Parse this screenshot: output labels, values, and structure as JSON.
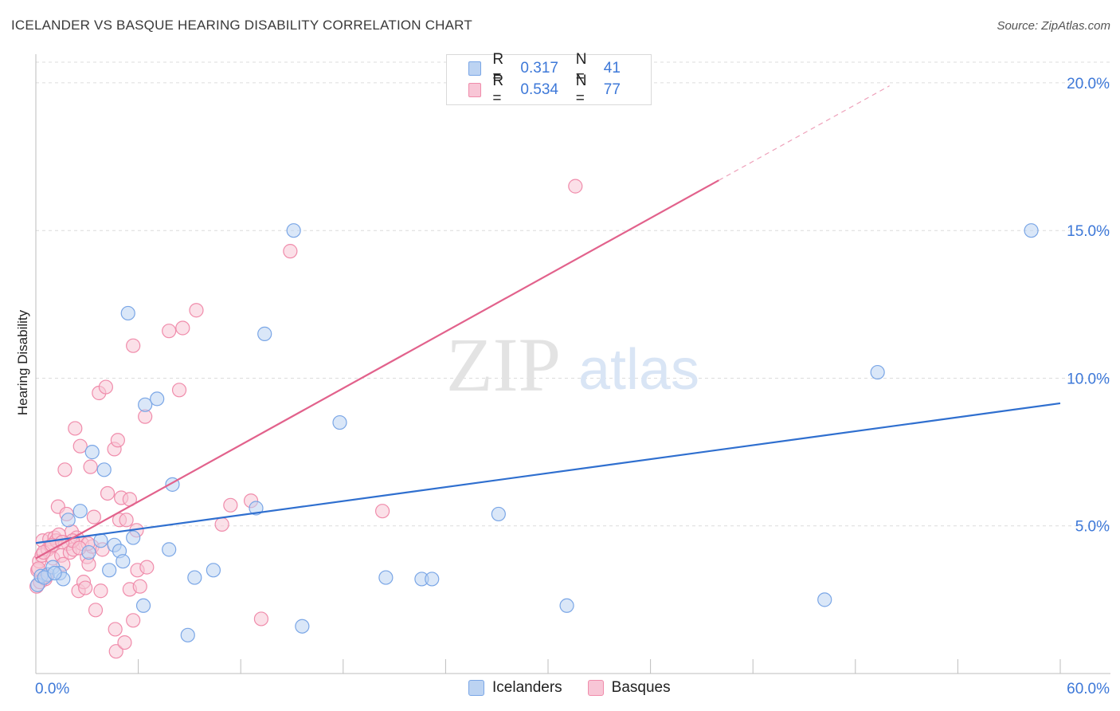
{
  "title": "ICELANDER VS BASQUE HEARING DISABILITY CORRELATION CHART",
  "source": "Source: ZipAtlas.com",
  "watermark": {
    "zip": "ZIP",
    "atlas": "atlas"
  },
  "legend": {
    "rows": [
      {
        "r_label": "R =",
        "r_value": "0.317",
        "n_label": "N =",
        "n_value": "41",
        "color": "#7aa6e6"
      },
      {
        "r_label": "R =",
        "r_value": "0.534",
        "n_label": "N =",
        "n_value": "77",
        "color": "#f08cab"
      }
    ]
  },
  "bottom_legend": {
    "icelanders": "Icelanders",
    "basques": "Basques"
  },
  "colors": {
    "icelander_fill": "#bcd3f2",
    "icelander_stroke": "#7aa6e6",
    "icelander_line": "#2f6fcf",
    "basque_fill": "#f8c6d6",
    "basque_stroke": "#f08cab",
    "basque_line": "#e2628c",
    "tick_label": "#3d78d8"
  },
  "chart_data": {
    "type": "scatter",
    "title": "ICELANDER VS BASQUE HEARING DISABILITY CORRELATION CHART",
    "xlabel": "",
    "ylabel": "Hearing Disability",
    "xlim": [
      0,
      60
    ],
    "ylim": [
      0,
      20.7
    ],
    "x_tick_labels": [
      {
        "value": 0,
        "label": "0.0%"
      },
      {
        "value": 60,
        "label": "60.0%"
      }
    ],
    "y_tick_labels": [
      {
        "value": 5,
        "label": "5.0%"
      },
      {
        "value": 10,
        "label": "10.0%"
      },
      {
        "value": 15,
        "label": "15.0%"
      },
      {
        "value": 20,
        "label": "20.0%"
      }
    ],
    "series": [
      {
        "name": "Icelanders",
        "r": 0.317,
        "n": 41,
        "trend": {
          "x0": 0,
          "y0": 4.42,
          "x1": 60,
          "y1": 9.15,
          "dashed_to": null
        },
        "points": [
          [
            0.1,
            3.0
          ],
          [
            0.3,
            3.3
          ],
          [
            0.7,
            3.35
          ],
          [
            1.0,
            3.6
          ],
          [
            1.4,
            3.4
          ],
          [
            1.6,
            3.2
          ],
          [
            1.9,
            5.2
          ],
          [
            2.6,
            5.5
          ],
          [
            3.1,
            4.1
          ],
          [
            3.3,
            7.5
          ],
          [
            3.8,
            4.5
          ],
          [
            4.0,
            6.9
          ],
          [
            4.3,
            3.5
          ],
          [
            4.6,
            4.35
          ],
          [
            4.9,
            4.15
          ],
          [
            5.1,
            3.8
          ],
          [
            5.4,
            12.2
          ],
          [
            5.7,
            4.6
          ],
          [
            6.3,
            2.3
          ],
          [
            6.4,
            9.1
          ],
          [
            7.1,
            9.3
          ],
          [
            7.8,
            4.2
          ],
          [
            8.0,
            6.4
          ],
          [
            8.9,
            1.3
          ],
          [
            9.3,
            3.25
          ],
          [
            10.4,
            3.5
          ],
          [
            12.9,
            5.6
          ],
          [
            13.4,
            11.5
          ],
          [
            15.1,
            15.0
          ],
          [
            15.6,
            1.6
          ],
          [
            17.8,
            8.5
          ],
          [
            20.5,
            3.25
          ],
          [
            22.6,
            3.2
          ],
          [
            23.2,
            3.2
          ],
          [
            27.1,
            5.4
          ],
          [
            31.1,
            2.3
          ],
          [
            46.2,
            2.5
          ],
          [
            49.3,
            10.2
          ],
          [
            58.3,
            15.0
          ],
          [
            0.5,
            3.25
          ],
          [
            1.1,
            3.4
          ]
        ]
      },
      {
        "name": "Basques",
        "r": 0.534,
        "n": 77,
        "trend": {
          "x0": 0,
          "y0": 3.9,
          "x1": 40.0,
          "y1": 16.7,
          "dashed_to": {
            "x": 50.0,
            "y": 19.9
          }
        },
        "points": [
          [
            0.05,
            2.95
          ],
          [
            0.1,
            3.5
          ],
          [
            0.2,
            3.8
          ],
          [
            0.35,
            4.0
          ],
          [
            0.4,
            4.5
          ],
          [
            0.55,
            3.2
          ],
          [
            0.7,
            4.2
          ],
          [
            0.8,
            4.55
          ],
          [
            0.9,
            4.3
          ],
          [
            1.0,
            3.9
          ],
          [
            1.1,
            4.6
          ],
          [
            1.2,
            4.5
          ],
          [
            1.3,
            5.65
          ],
          [
            1.5,
            4.0
          ],
          [
            1.6,
            3.7
          ],
          [
            1.7,
            6.9
          ],
          [
            1.8,
            5.4
          ],
          [
            1.9,
            4.4
          ],
          [
            2.0,
            4.1
          ],
          [
            2.1,
            4.8
          ],
          [
            2.2,
            4.2
          ],
          [
            2.3,
            8.3
          ],
          [
            2.4,
            4.6
          ],
          [
            2.5,
            2.8
          ],
          [
            2.6,
            7.7
          ],
          [
            2.7,
            4.4
          ],
          [
            2.8,
            3.1
          ],
          [
            2.9,
            2.9
          ],
          [
            3.0,
            3.95
          ],
          [
            3.1,
            3.7
          ],
          [
            3.2,
            7.0
          ],
          [
            3.3,
            4.3
          ],
          [
            3.4,
            5.3
          ],
          [
            3.5,
            2.15
          ],
          [
            3.7,
            9.5
          ],
          [
            3.8,
            2.8
          ],
          [
            3.9,
            4.2
          ],
          [
            4.1,
            9.7
          ],
          [
            4.2,
            6.1
          ],
          [
            4.6,
            7.6
          ],
          [
            4.65,
            1.5
          ],
          [
            4.7,
            0.75
          ],
          [
            4.8,
            7.9
          ],
          [
            4.9,
            5.2
          ],
          [
            5.0,
            5.95
          ],
          [
            5.2,
            1.05
          ],
          [
            5.3,
            5.2
          ],
          [
            5.5,
            5.9
          ],
          [
            5.5,
            2.85
          ],
          [
            5.7,
            11.1
          ],
          [
            5.7,
            1.8
          ],
          [
            5.9,
            4.85
          ],
          [
            5.95,
            3.5
          ],
          [
            6.1,
            2.95
          ],
          [
            6.4,
            8.7
          ],
          [
            6.5,
            3.6
          ],
          [
            7.8,
            11.6
          ],
          [
            8.4,
            9.6
          ],
          [
            8.6,
            11.7
          ],
          [
            9.4,
            12.3
          ],
          [
            10.9,
            5.05
          ],
          [
            11.4,
            5.7
          ],
          [
            12.6,
            5.85
          ],
          [
            13.2,
            1.85
          ],
          [
            14.9,
            14.3
          ],
          [
            20.3,
            5.5
          ],
          [
            31.6,
            16.5
          ],
          [
            0.6,
            3.3
          ],
          [
            1.35,
            4.7
          ],
          [
            2.15,
            4.5
          ],
          [
            0.45,
            4.1
          ],
          [
            3.05,
            4.4
          ],
          [
            0.25,
            3.1
          ],
          [
            0.95,
            4.35
          ],
          [
            1.55,
            4.45
          ],
          [
            2.55,
            4.25
          ],
          [
            0.15,
            3.55
          ]
        ]
      }
    ]
  }
}
